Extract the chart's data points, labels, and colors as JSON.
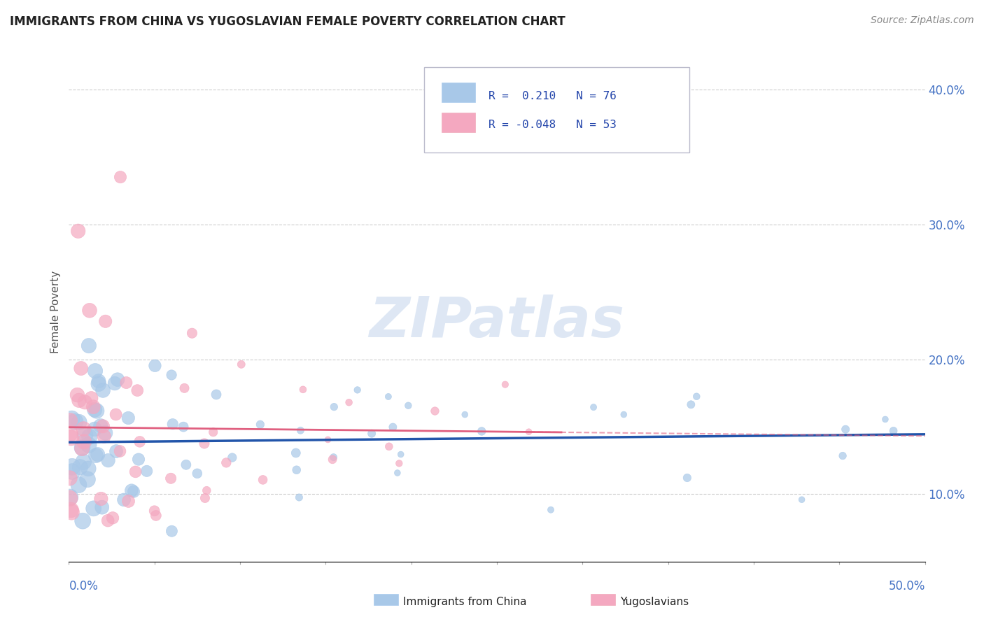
{
  "title": "IMMIGRANTS FROM CHINA VS YUGOSLAVIAN FEMALE POVERTY CORRELATION CHART",
  "source": "Source: ZipAtlas.com",
  "ylabel": "Female Poverty",
  "xlim": [
    0.0,
    50.0
  ],
  "ylim": [
    5.0,
    42.0
  ],
  "yticks": [
    10.0,
    20.0,
    30.0,
    40.0
  ],
  "ytick_labels": [
    "10.0%",
    "20.0%",
    "30.0%",
    "40.0%"
  ],
  "legend_r1": "R =  0.210",
  "legend_n1": "N = 76",
  "legend_r2": "R = -0.048",
  "legend_n2": "N = 53",
  "color_china": "#a8c8e8",
  "color_yugo": "#f4a8c0",
  "color_china_line": "#2255aa",
  "color_yugo_line": "#e06080",
  "watermark": "ZIPatlas",
  "watermark_color": "#c8d8ee"
}
